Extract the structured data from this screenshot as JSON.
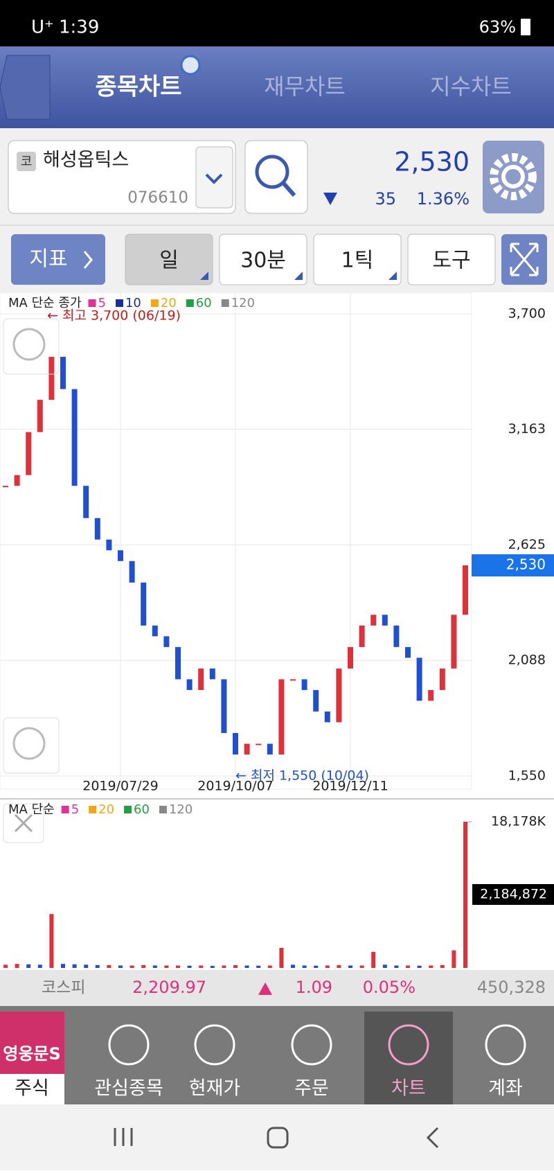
{
  "status_bar": {
    "carrier": "U⁺",
    "time": "1:39",
    "battery": "63%"
  },
  "tabs": [
    "종목차트",
    "재무차트",
    "지수차트"
  ],
  "stock": {
    "prefix": "코",
    "name": "해성옵틱스",
    "code": "076610",
    "price": "2,530",
    "change": "35",
    "change_pct": "1.36%"
  },
  "toolbar": {
    "indicator": "지표",
    "buttons": [
      "일",
      "30분",
      "1틱",
      "도구"
    ]
  },
  "chart_data": [
    {
      "type": "candlestick",
      "legend_title": "MA 단순 종가",
      "ma_legend": [
        {
          "name": "5",
          "color": "#e0309a"
        },
        {
          "name": "10",
          "color": "#1a2ea0"
        },
        {
          "name": "20",
          "color": "#f0a818"
        },
        {
          "name": "60",
          "color": "#20a040"
        },
        {
          "name": "120",
          "color": "#888888"
        }
      ],
      "categories": [
        null,
        null,
        null,
        null,
        null,
        null,
        null,
        null,
        null,
        null,
        "2019/07/29",
        null,
        null,
        null,
        null,
        null,
        null,
        null,
        null,
        null,
        "2019/10/07",
        null,
        null,
        null,
        null,
        null,
        null,
        null,
        null,
        null,
        "2019/12/11",
        null,
        null,
        null,
        null,
        null,
        null,
        null,
        null,
        null,
        null
      ],
      "values": [
        2900,
        2950,
        3150,
        3300,
        3500,
        3350,
        2900,
        2750,
        2650,
        2600,
        2550,
        2450,
        2250,
        2200,
        2150,
        2000,
        1950,
        2050,
        2000,
        1750,
        1650,
        1700,
        1700,
        1650,
        2000,
        2000,
        1950,
        1850,
        1800,
        2050,
        2150,
        2250,
        2300,
        2250,
        2150,
        2100,
        1900,
        1950,
        2050,
        2300,
        2530
      ],
      "ylim": [
        1550,
        3700
      ],
      "yticks": [
        {
          "value": 1550,
          "label": "1,550"
        },
        {
          "value": 2088,
          "label": "2,088"
        },
        {
          "value": 2625,
          "label": "2,625"
        },
        {
          "value": 3163,
          "label": "3,163"
        },
        {
          "value": 3700,
          "label": "3,700"
        }
      ],
      "annotations": [
        "← 최고 3,700 (06/19)",
        "← 최저 1,550 (10/04)"
      ],
      "grid": true
    },
    {
      "type": "bar",
      "legend_title": "MA 단순",
      "ma_legend": [
        {
          "name": "5",
          "color": "#e0309a"
        },
        {
          "name": "20",
          "color": "#f0a818"
        },
        {
          "name": "60",
          "color": "#20a040"
        },
        {
          "name": "120",
          "color": "#888888"
        }
      ],
      "values": [
        400,
        500,
        450,
        400,
        6700,
        500,
        450,
        400,
        350,
        350,
        300,
        300,
        350,
        300,
        300,
        300,
        280,
        300,
        250,
        300,
        350,
        300,
        280,
        300,
        2500,
        400,
        300,
        280,
        300,
        350,
        300,
        300,
        2000,
        400,
        300,
        300,
        280,
        300,
        350,
        2184,
        18178
      ],
      "ylim": [
        0,
        18178
      ],
      "yticks": [
        {
          "value": 18178,
          "label": "18,178K"
        }
      ],
      "current_label": "2,184,872"
    }
  ],
  "market": {
    "name": "코스피",
    "index": "2,209.97",
    "change": "1.09",
    "pct": "0.05%",
    "volume": "450,328"
  },
  "brand": "영웅문S",
  "nav": [
    "주식",
    "관심종목",
    "현재가",
    "주문",
    "차트",
    "계좌"
  ]
}
